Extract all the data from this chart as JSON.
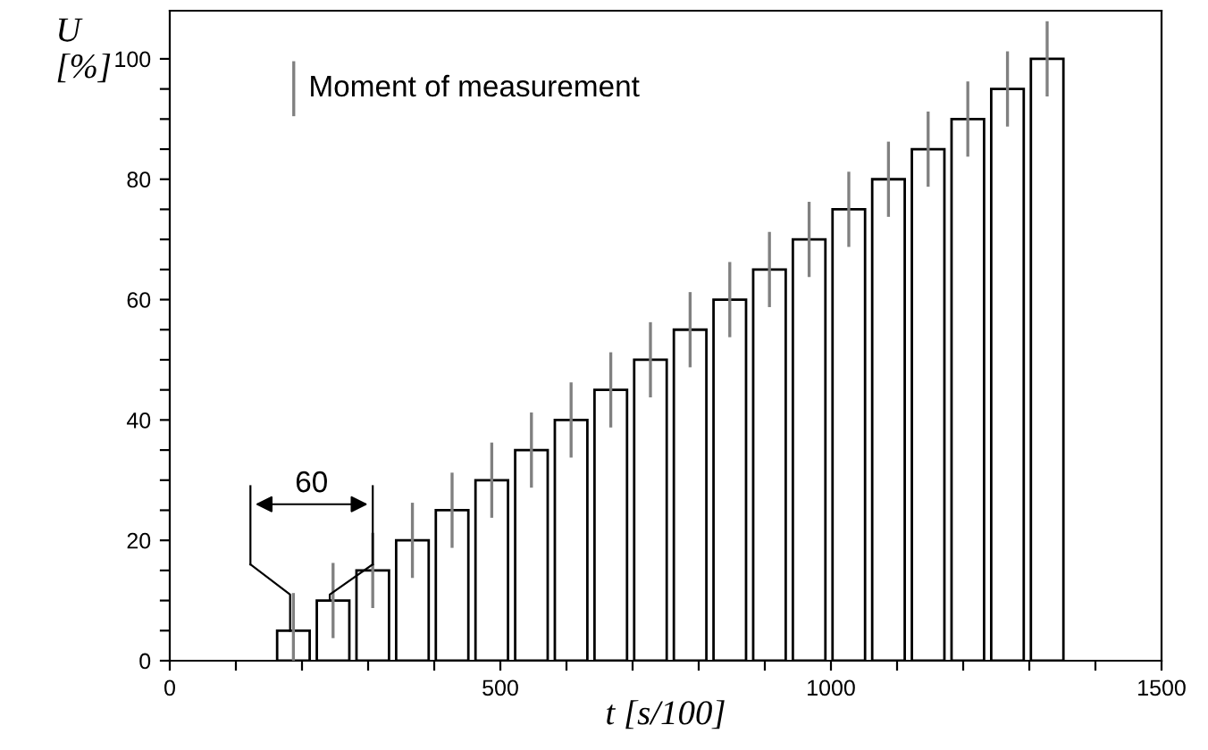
{
  "chart_data": {
    "type": "bar",
    "xlabel": "t [s/100]",
    "ylabel": "U\n[%]",
    "x": [
      187,
      247,
      307,
      367,
      427,
      487,
      547,
      607,
      667,
      727,
      787,
      847,
      907,
      967,
      1027,
      1087,
      1147,
      1207,
      1267,
      1327
    ],
    "series": [
      {
        "color": "#ffffff",
        "values": [
          5,
          10,
          15,
          20,
          25,
          30,
          35,
          40,
          45,
          50,
          55,
          60,
          65,
          70,
          75,
          80,
          85,
          90,
          95,
          100
        ]
      }
    ],
    "annotations": [
      "Moment of measurement",
      "60"
    ],
    "xlim": [
      0,
      1500
    ],
    "xticks": [
      0,
      {
        "value": 100,
        "label": null
      },
      {
        "value": 200,
        "label": null
      },
      {
        "value": 300,
        "label": null
      },
      {
        "value": 400,
        "label": null
      },
      500,
      {
        "value": 600,
        "label": null
      },
      {
        "value": 700,
        "label": null
      },
      {
        "value": 800,
        "label": null
      },
      {
        "value": 900,
        "label": null
      },
      1000,
      {
        "value": 1100,
        "label": null
      },
      {
        "value": 1200,
        "label": null
      },
      {
        "value": 1300,
        "label": null
      },
      {
        "value": 1400,
        "label": null
      },
      1500
    ],
    "ylim": [
      0,
      108
    ],
    "yticks": [
      0,
      {
        "value": 5,
        "label": null
      },
      {
        "value": 10,
        "label": null
      },
      {
        "value": 15,
        "label": null
      },
      20,
      {
        "value": 25,
        "label": null
      },
      {
        "value": 30,
        "label": null
      },
      {
        "value": 35,
        "label": null
      },
      40,
      {
        "value": 45,
        "label": null
      },
      {
        "value": 50,
        "label": null
      },
      {
        "value": 55,
        "label": null
      },
      60,
      {
        "value": 65,
        "label": null
      },
      {
        "value": 70,
        "label": null
      },
      {
        "value": 75,
        "label": null
      },
      80,
      {
        "value": 85,
        "label": null
      },
      {
        "value": 90,
        "label": null
      },
      {
        "value": 95,
        "label": null
      },
      100
    ],
    "grid": false
  }
}
